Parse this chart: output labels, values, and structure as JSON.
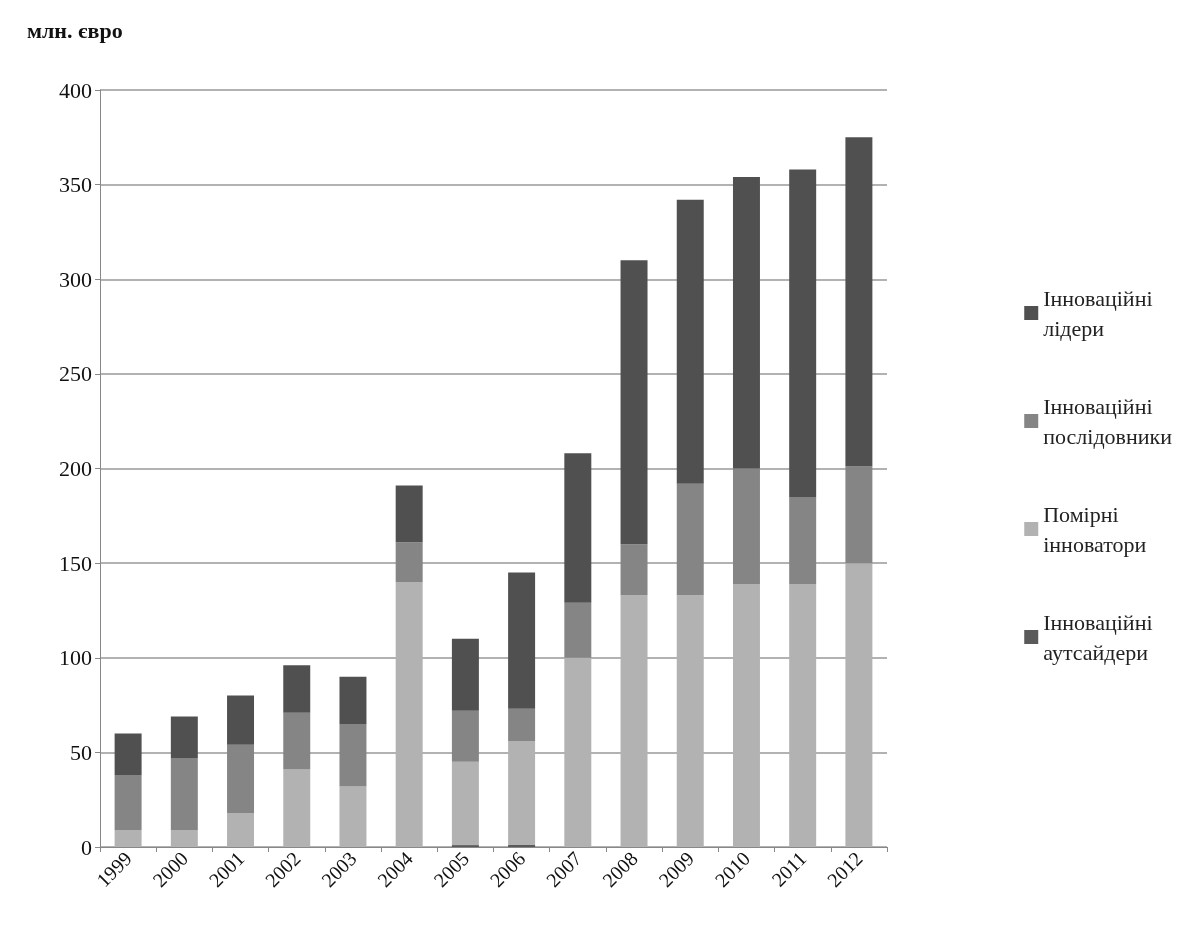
{
  "chart_data": {
    "type": "bar",
    "stacked": true,
    "ylabel": "млн. євро",
    "categories": [
      "1999",
      "2000",
      "2001",
      "2002",
      "2003",
      "2004",
      "2005",
      "2006",
      "2007",
      "2008",
      "2009",
      "2010",
      "2011",
      "2012"
    ],
    "series": [
      {
        "name": "Інноваційні аутсайдери",
        "color": "#5a5a5a",
        "values": [
          0,
          0,
          0,
          0,
          0,
          0,
          1,
          1,
          0,
          0,
          0,
          0,
          0,
          0
        ]
      },
      {
        "name": "Помірні інноватори",
        "color": "#b2b2b2",
        "values": [
          9,
          9,
          18,
          41,
          32,
          140,
          44,
          55,
          100,
          133,
          133,
          139,
          139,
          150
        ]
      },
      {
        "name": "Інноваційні послідовники",
        "color": "#858585",
        "values": [
          29,
          38,
          36,
          30,
          33,
          21,
          27,
          17,
          29,
          27,
          59,
          61,
          46,
          51
        ]
      },
      {
        "name": "Інноваційні лідери",
        "color": "#505050",
        "values": [
          22,
          22,
          26,
          25,
          25,
          30,
          38,
          72,
          79,
          150,
          150,
          154,
          173,
          174
        ]
      }
    ],
    "ylim": [
      0,
      400
    ],
    "yticks": [
      0,
      50,
      100,
      150,
      200,
      250,
      300,
      350,
      400
    ],
    "grid": "y",
    "legend": "right"
  }
}
